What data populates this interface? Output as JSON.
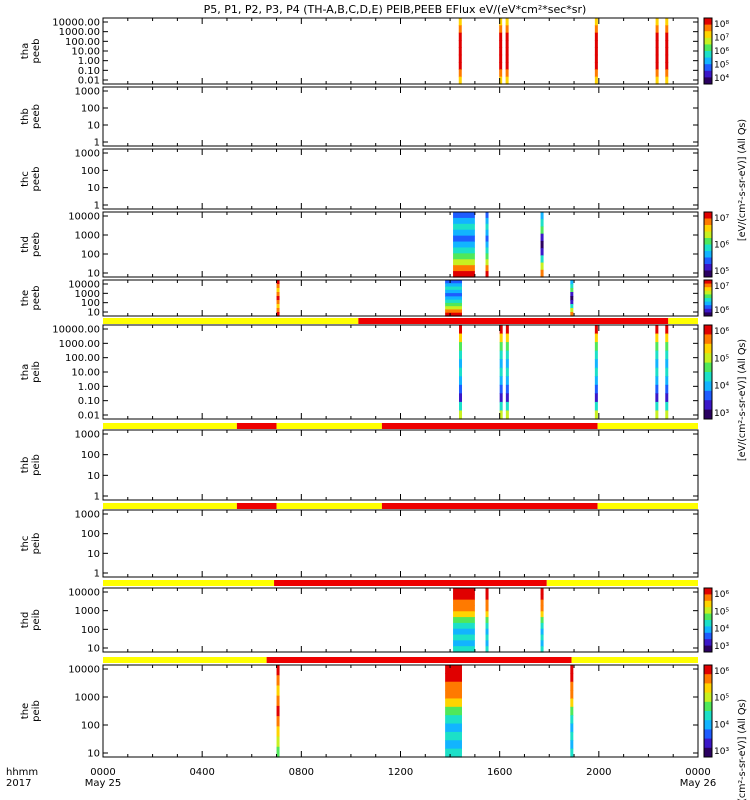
{
  "title": "P5, P1, P2, P3, P4 (TH-A,B,C,D,E) PEIB,PEEB EFlux eV/(eV*cm²*sec*sr)",
  "x_axis": {
    "row1_label": "hhmm",
    "row2_label": "2017",
    "ticks": [
      "0000",
      "0400",
      "0800",
      "1200",
      "1600",
      "2000",
      "0000"
    ],
    "dates": [
      "May 25",
      "May 26"
    ]
  },
  "right_labels": {
    "panel_a": "[eV/(cm²-s-sr-eV)] (All Qs)",
    "panel_b": "[eV/(cm²-s-sr-eV)] (All Qs)",
    "panel_c": "[eV/(cm²-s-sr-eV)] (All Qs)"
  },
  "colors": {
    "flag_good": "#ffff00",
    "flag_bad": "#ee0000",
    "colormap": [
      "#2a0060",
      "#3b17c8",
      "#1e5cff",
      "#12b4ff",
      "#1ce0c8",
      "#4fe85a",
      "#c8f020",
      "#ffd400",
      "#ff7a00",
      "#e00000"
    ]
  },
  "chart_data": [
    {
      "name": "tha-peeb",
      "ylabel": [
        "tha",
        "peeb"
      ],
      "yticks": [
        "10000.00",
        "1000.00",
        "100.00",
        "10.00",
        "1.00",
        "0.10",
        "0.01"
      ],
      "colorbar_ticks": [
        "10⁸",
        "10⁷",
        "10⁶",
        "10⁵",
        "10⁴"
      ],
      "flag": null,
      "bursts": [
        {
          "start": 1435,
          "end": 1444,
          "style": "eflux_ions"
        },
        {
          "start": 1598,
          "end": 1607,
          "style": "eflux_ions"
        },
        {
          "start": 1624,
          "end": 1633,
          "style": "eflux_ions"
        },
        {
          "start": 1984,
          "end": 1993,
          "style": "eflux_ions"
        },
        {
          "start": 2229,
          "end": 2238,
          "style": "eflux_ions"
        },
        {
          "start": 2268,
          "end": 2277,
          "style": "eflux_ions"
        }
      ]
    },
    {
      "name": "thb-peeb",
      "ylabel": [
        "thb",
        "peeb"
      ],
      "yticks": [
        "1000",
        "100",
        "10",
        "1"
      ],
      "colorbar_ticks": [],
      "flag": null,
      "bursts": []
    },
    {
      "name": "thc-peeb",
      "ylabel": [
        "thc",
        "peeb"
      ],
      "yticks": [
        "1000",
        "100",
        "10",
        "1"
      ],
      "colorbar_ticks": [],
      "flag": null,
      "bursts": []
    },
    {
      "name": "thd-peeb",
      "ylabel": [
        "thd",
        "peeb"
      ],
      "yticks": [
        "10000",
        "1000",
        "100",
        "10"
      ],
      "colorbar_ticks": [
        "10⁷",
        "10⁶",
        "10⁵"
      ],
      "flag": null,
      "bursts": [
        {
          "start": 1412,
          "end": 1500,
          "style": "eflux_high"
        },
        {
          "start": 1543,
          "end": 1555,
          "style": "eflux_high"
        },
        {
          "start": 1765,
          "end": 1776,
          "style": "eflux_mixed"
        }
      ]
    },
    {
      "name": "the-peeb",
      "ylabel": [
        "the",
        "peeb"
      ],
      "yticks": [
        "10000",
        "1000",
        "100",
        "10"
      ],
      "colorbar_ticks": [
        "10⁷",
        "10⁶"
      ],
      "flag": null,
      "bursts": [
        {
          "start": 700,
          "end": 708,
          "style": "eflux_spike"
        },
        {
          "start": 1380,
          "end": 1448,
          "style": "eflux_high"
        },
        {
          "start": 1885,
          "end": 1893,
          "style": "eflux_mixed"
        }
      ]
    },
    {
      "name": "tha-peib",
      "ylabel": [
        "tha",
        "peib"
      ],
      "yticks": [
        "10000.00",
        "1000.00",
        "100.00",
        "10.00",
        "1.00",
        "0.10",
        "0.01"
      ],
      "colorbar_ticks": [
        "10⁶",
        "10⁵",
        "10⁴",
        "10³"
      ],
      "flag": [
        {
          "start": 0,
          "end": 1030,
          "state": "good"
        },
        {
          "start": 1030,
          "end": 2280,
          "state": "bad"
        },
        {
          "start": 2280,
          "end": 2400,
          "state": "good"
        }
      ],
      "bursts": [
        {
          "start": 1436,
          "end": 1444,
          "style": "ion_mixed"
        },
        {
          "start": 1600,
          "end": 1608,
          "style": "ion_mixed"
        },
        {
          "start": 1625,
          "end": 1633,
          "style": "ion_mixed"
        },
        {
          "start": 1984,
          "end": 1992,
          "style": "ion_mixed"
        },
        {
          "start": 2228,
          "end": 2236,
          "style": "ion_mixed"
        },
        {
          "start": 2268,
          "end": 2276,
          "style": "ion_mixed"
        }
      ]
    },
    {
      "name": "thb-peib",
      "ylabel": [
        "thb",
        "peib"
      ],
      "yticks": [
        "1000",
        "100",
        "10",
        "1"
      ],
      "colorbar_ticks": [],
      "flag": [
        {
          "start": 0,
          "end": 540,
          "state": "good"
        },
        {
          "start": 540,
          "end": 700,
          "state": "bad"
        },
        {
          "start": 700,
          "end": 1125,
          "state": "good"
        },
        {
          "start": 1125,
          "end": 1995,
          "state": "bad"
        },
        {
          "start": 1995,
          "end": 2400,
          "state": "good"
        }
      ],
      "bursts": []
    },
    {
      "name": "thc-peib",
      "ylabel": [
        "thc",
        "peib"
      ],
      "yticks": [
        "1000",
        "100",
        "10",
        "1"
      ],
      "colorbar_ticks": [],
      "flag": [
        {
          "start": 0,
          "end": 540,
          "state": "good"
        },
        {
          "start": 540,
          "end": 700,
          "state": "bad"
        },
        {
          "start": 700,
          "end": 1125,
          "state": "good"
        },
        {
          "start": 1125,
          "end": 1995,
          "state": "bad"
        },
        {
          "start": 1995,
          "end": 2400,
          "state": "good"
        }
      ],
      "bursts": []
    },
    {
      "name": "thd-peib",
      "ylabel": [
        "thd",
        "peib"
      ],
      "yticks": [
        "10000",
        "1000",
        "100",
        "10"
      ],
      "colorbar_ticks": [
        "10⁶",
        "10⁵",
        "10⁴",
        "10³"
      ],
      "flag": [
        {
          "start": 0,
          "end": 690,
          "state": "good"
        },
        {
          "start": 690,
          "end": 1790,
          "state": "bad"
        },
        {
          "start": 1790,
          "end": 2400,
          "state": "good"
        }
      ],
      "bursts": [
        {
          "start": 1412,
          "end": 1500,
          "style": "ion_high"
        },
        {
          "start": 1543,
          "end": 1555,
          "style": "ion_high"
        },
        {
          "start": 1765,
          "end": 1776,
          "style": "ion_high"
        }
      ]
    },
    {
      "name": "the-peib",
      "ylabel": [
        "the",
        "peib"
      ],
      "yticks": [
        "10000",
        "1000",
        "100",
        "10"
      ],
      "colorbar_ticks": [
        "10⁶",
        "10⁵",
        "10⁴",
        "10³"
      ],
      "flag": [
        {
          "start": 0,
          "end": 660,
          "state": "good"
        },
        {
          "start": 660,
          "end": 1890,
          "state": "bad"
        },
        {
          "start": 1890,
          "end": 2400,
          "state": "good"
        }
      ],
      "bursts": [
        {
          "start": 700,
          "end": 708,
          "style": "ion_spike"
        },
        {
          "start": 1380,
          "end": 1448,
          "style": "ion_high"
        },
        {
          "start": 1885,
          "end": 1893,
          "style": "ion_high"
        }
      ]
    }
  ]
}
